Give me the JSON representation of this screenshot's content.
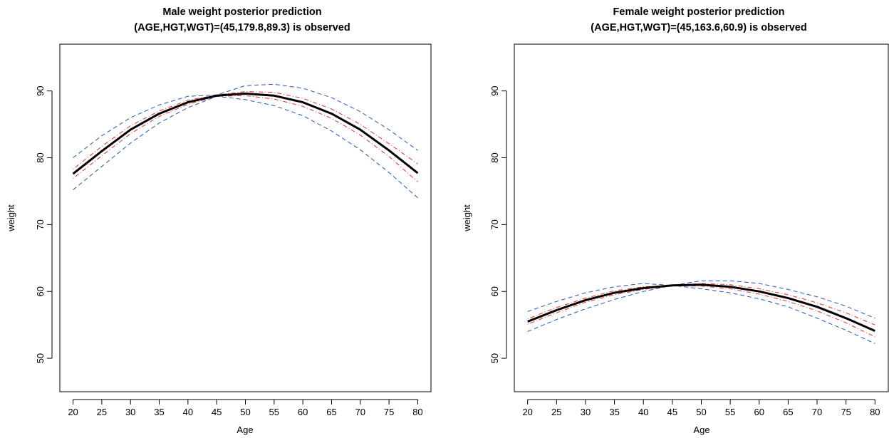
{
  "chart_data": [
    {
      "type": "line",
      "title": "Male weight posterior prediction",
      "subtitle": "(AGE,HGT,WGT)=(45,179.8,89.3) is observed",
      "xlabel": "Age",
      "ylabel": "weight",
      "xlim": [
        17.7,
        82.3
      ],
      "ylim": [
        45,
        97
      ],
      "xticks": [
        20,
        25,
        30,
        35,
        40,
        45,
        50,
        55,
        60,
        65,
        70,
        75,
        80
      ],
      "yticks": [
        50,
        60,
        70,
        80,
        90
      ],
      "grid": false,
      "x": [
        20,
        25,
        30,
        35,
        40,
        45,
        50,
        55,
        60,
        65,
        70,
        75,
        80
      ],
      "series": [
        {
          "role": "mean",
          "color": "#000000",
          "style": "solid",
          "width": 3,
          "values": [
            77.6,
            81.0,
            84.2,
            86.6,
            88.3,
            89.3,
            89.6,
            89.3,
            88.3,
            86.6,
            84.2,
            81.1,
            77.7
          ]
        },
        {
          "role": "inner-upper",
          "color": "#e8302a",
          "style": "dotdash",
          "width": 1,
          "values": [
            78.3,
            81.7,
            84.8,
            87.0,
            88.6,
            89.4,
            89.9,
            89.8,
            88.9,
            87.3,
            85.0,
            82.1,
            79.1
          ]
        },
        {
          "role": "inner-lower",
          "color": "#e8302a",
          "style": "dotdash",
          "width": 1,
          "values": [
            76.9,
            80.3,
            83.6,
            86.2,
            88.0,
            89.2,
            89.3,
            88.8,
            87.7,
            85.9,
            83.4,
            80.2,
            76.4
          ]
        },
        {
          "role": "outer-upper",
          "color": "#2255c4",
          "style": "dashed",
          "width": 1,
          "values": [
            80.0,
            83.3,
            86.0,
            87.9,
            89.2,
            89.4,
            90.8,
            91.0,
            90.4,
            89.0,
            86.9,
            84.2,
            81.1
          ]
        },
        {
          "role": "outer-lower",
          "color": "#2255c4",
          "style": "dashed",
          "width": 1,
          "values": [
            75.2,
            78.7,
            82.2,
            85.2,
            87.5,
            89.2,
            88.7,
            87.8,
            86.3,
            84.0,
            81.2,
            77.8,
            74.0
          ]
        }
      ]
    },
    {
      "type": "line",
      "title": "Female weight posterior prediction",
      "subtitle": "(AGE,HGT,WGT)=(45,163.6,60.9) is observed",
      "xlabel": "Age",
      "ylabel": "weight",
      "xlim": [
        17.7,
        82.3
      ],
      "ylim": [
        45,
        97
      ],
      "xticks": [
        20,
        25,
        30,
        35,
        40,
        45,
        50,
        55,
        60,
        65,
        70,
        75,
        80
      ],
      "yticks": [
        50,
        60,
        70,
        80,
        90
      ],
      "grid": false,
      "x": [
        20,
        25,
        30,
        35,
        40,
        45,
        50,
        55,
        60,
        65,
        70,
        75,
        80
      ],
      "series": [
        {
          "role": "mean",
          "color": "#000000",
          "style": "solid",
          "width": 3,
          "values": [
            55.5,
            57.2,
            58.7,
            59.8,
            60.5,
            60.9,
            61.0,
            60.7,
            60.0,
            59.0,
            57.7,
            56.0,
            54.1
          ]
        },
        {
          "role": "inner-upper",
          "color": "#e8302a",
          "style": "dotdash",
          "width": 1,
          "values": [
            55.9,
            57.6,
            59.0,
            60.1,
            60.7,
            60.9,
            61.2,
            61.0,
            60.4,
            59.5,
            58.3,
            56.8,
            55.0
          ]
        },
        {
          "role": "inner-lower",
          "color": "#e8302a",
          "style": "dotdash",
          "width": 1,
          "values": [
            55.1,
            56.8,
            58.4,
            59.5,
            60.3,
            60.9,
            60.8,
            60.4,
            59.6,
            58.5,
            57.1,
            55.3,
            53.2
          ]
        },
        {
          "role": "outer-upper",
          "color": "#2255c4",
          "style": "dashed",
          "width": 1,
          "values": [
            57.0,
            58.5,
            59.8,
            60.7,
            61.2,
            60.9,
            61.6,
            61.6,
            61.2,
            60.3,
            59.2,
            57.8,
            56.0
          ]
        },
        {
          "role": "outer-lower",
          "color": "#2255c4",
          "style": "dashed",
          "width": 1,
          "values": [
            54.0,
            55.8,
            57.4,
            58.8,
            60.0,
            60.9,
            60.4,
            59.8,
            58.9,
            57.7,
            56.0,
            54.2,
            52.2
          ]
        }
      ]
    }
  ]
}
